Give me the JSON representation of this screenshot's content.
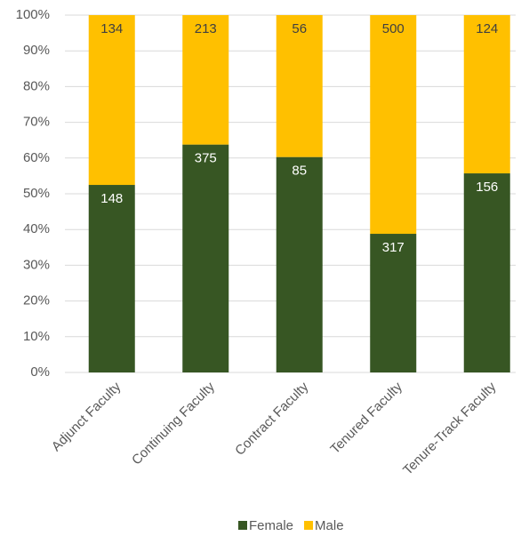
{
  "chart_data": {
    "type": "bar",
    "stacking": "percent",
    "categories": [
      "Adjunct Faculty",
      "Continuing Faculty",
      "Contract Faculty",
      "Tenured Faculty",
      "Tenure-Track Faculty"
    ],
    "series": [
      {
        "name": "Female",
        "color": "#375623",
        "values": [
          148,
          375,
          85,
          317,
          156
        ]
      },
      {
        "name": "Male",
        "color": "#ffc000",
        "values": [
          134,
          213,
          56,
          500,
          124
        ]
      }
    ],
    "ylim": [
      0,
      100
    ],
    "yticks": [
      {
        "value": 0,
        "label": "0%"
      },
      {
        "value": 10,
        "label": "10%"
      },
      {
        "value": 20,
        "label": "20%"
      },
      {
        "value": 30,
        "label": "30%"
      },
      {
        "value": 40,
        "label": "40%"
      },
      {
        "value": 50,
        "label": "50%"
      },
      {
        "value": 60,
        "label": "60%"
      },
      {
        "value": 70,
        "label": "70%"
      },
      {
        "value": 80,
        "label": "80%"
      },
      {
        "value": 90,
        "label": "90%"
      },
      {
        "value": 100,
        "label": "100%"
      }
    ],
    "grid": true,
    "legend": "bottom"
  }
}
